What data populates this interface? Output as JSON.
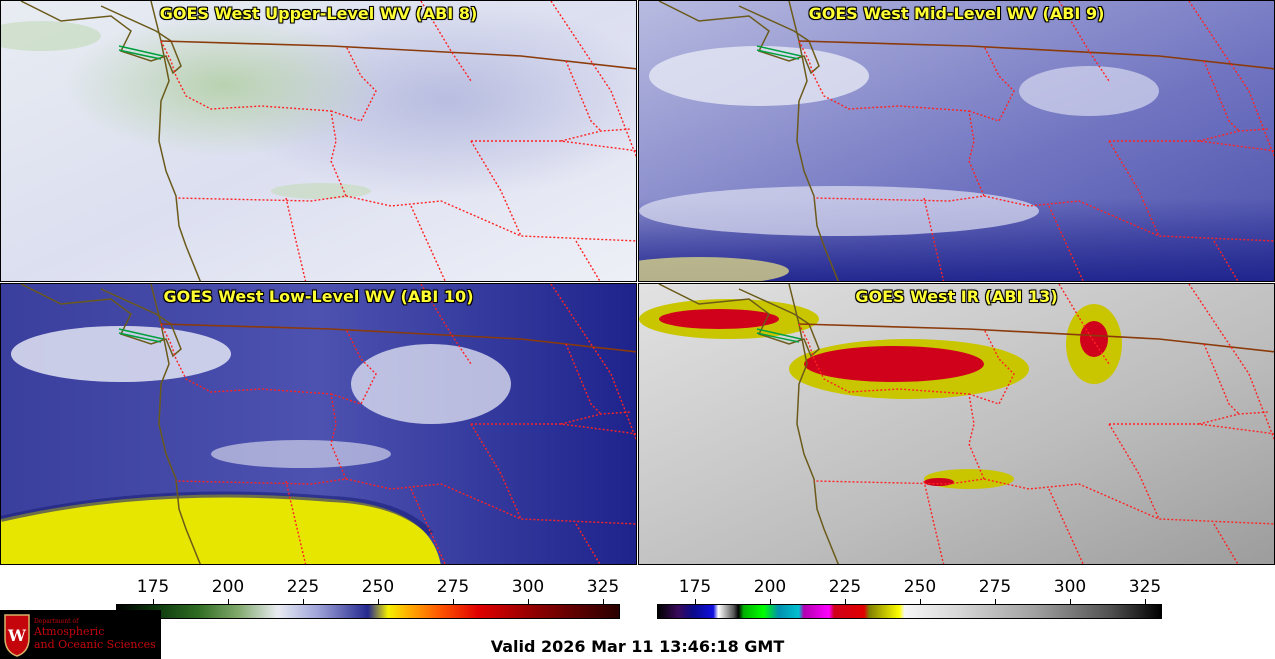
{
  "panels": [
    {
      "title": "GOES West Upper-Level WV (ABI 8)"
    },
    {
      "title": "GOES West Mid-Level WV (ABI 9)"
    },
    {
      "title": "GOES West Low-Level WV (ABI 10)"
    },
    {
      "title": "GOES West IR (ABI 13)"
    }
  ],
  "colorbars": {
    "wv": {
      "ticks": [
        "175",
        "200",
        "225",
        "250",
        "275",
        "300",
        "325"
      ]
    },
    "ir": {
      "ticks": [
        "175",
        "200",
        "225",
        "250",
        "275",
        "300",
        "325"
      ]
    }
  },
  "logo": {
    "dept": "Department of",
    "line1": "Atmospheric",
    "line2": "and Oceanic Sciences",
    "crest_letter": "W"
  },
  "valid_time": "Valid 2026 Mar 11 13:46:18 GMT",
  "colors": {
    "title_yellow": "#ffff33",
    "border_state": "#ff2222",
    "border_country": "#8b3a0a",
    "coast": "#6b5a1a",
    "logo_red": "#c5050c"
  }
}
